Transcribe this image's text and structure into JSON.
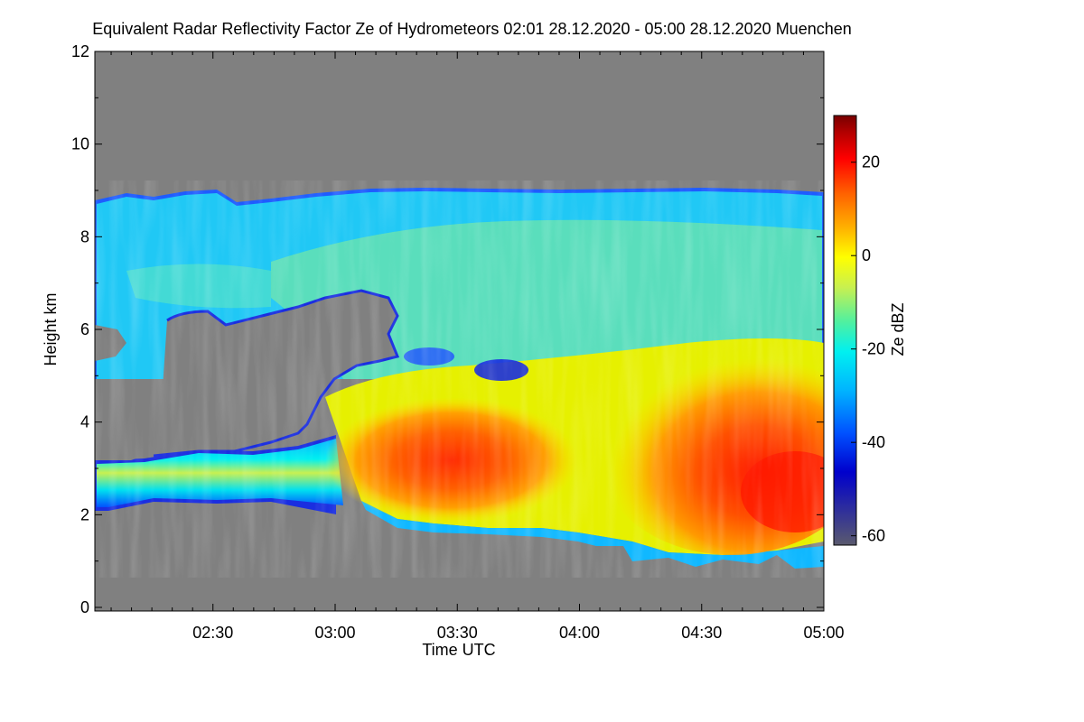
{
  "title": "Equivalent Radar Reflectivity Factor Ze of Hydrometeors   02:01 28.12.2020 - 05:00 28.12.2020 Muenchen",
  "chart_data": {
    "type": "heatmap",
    "title": "Equivalent Radar Reflectivity Factor Ze of Hydrometeors   02:01 28.12.2020 - 05:00 28.12.2020 Muenchen",
    "xlabel": "Time UTC",
    "ylabel": "Height km",
    "x_range": [
      "02:01",
      "05:00"
    ],
    "x_ticks": [
      "02:30",
      "03:00",
      "03:30",
      "04:00",
      "04:30",
      "05:00"
    ],
    "ylim": [
      0,
      12
    ],
    "y_ticks": [
      "0",
      "2",
      "4",
      "6",
      "8",
      "10",
      "12"
    ],
    "colorbar": {
      "label": "Ze dBZ",
      "range": [
        -62,
        30
      ],
      "ticks": [
        "-60",
        "-40",
        "-20",
        "0",
        "20"
      ],
      "colors": [
        "#5a5a6e",
        "#0000cc",
        "#0050ff",
        "#00b4ff",
        "#00f0f0",
        "#50f0a0",
        "#c8f050",
        "#ffff00",
        "#ffb000",
        "#ff6000",
        "#ff0000",
        "#b40000",
        "#780000"
      ]
    },
    "background_color": "#808080",
    "annotations": "Cloud layer top near 9 km throughout; low layer around 2-3 km before 03:00; strongest reflectivity (~10-20 dBZ) between 2 and 4.5 km after 03:00 and after 04:15"
  }
}
